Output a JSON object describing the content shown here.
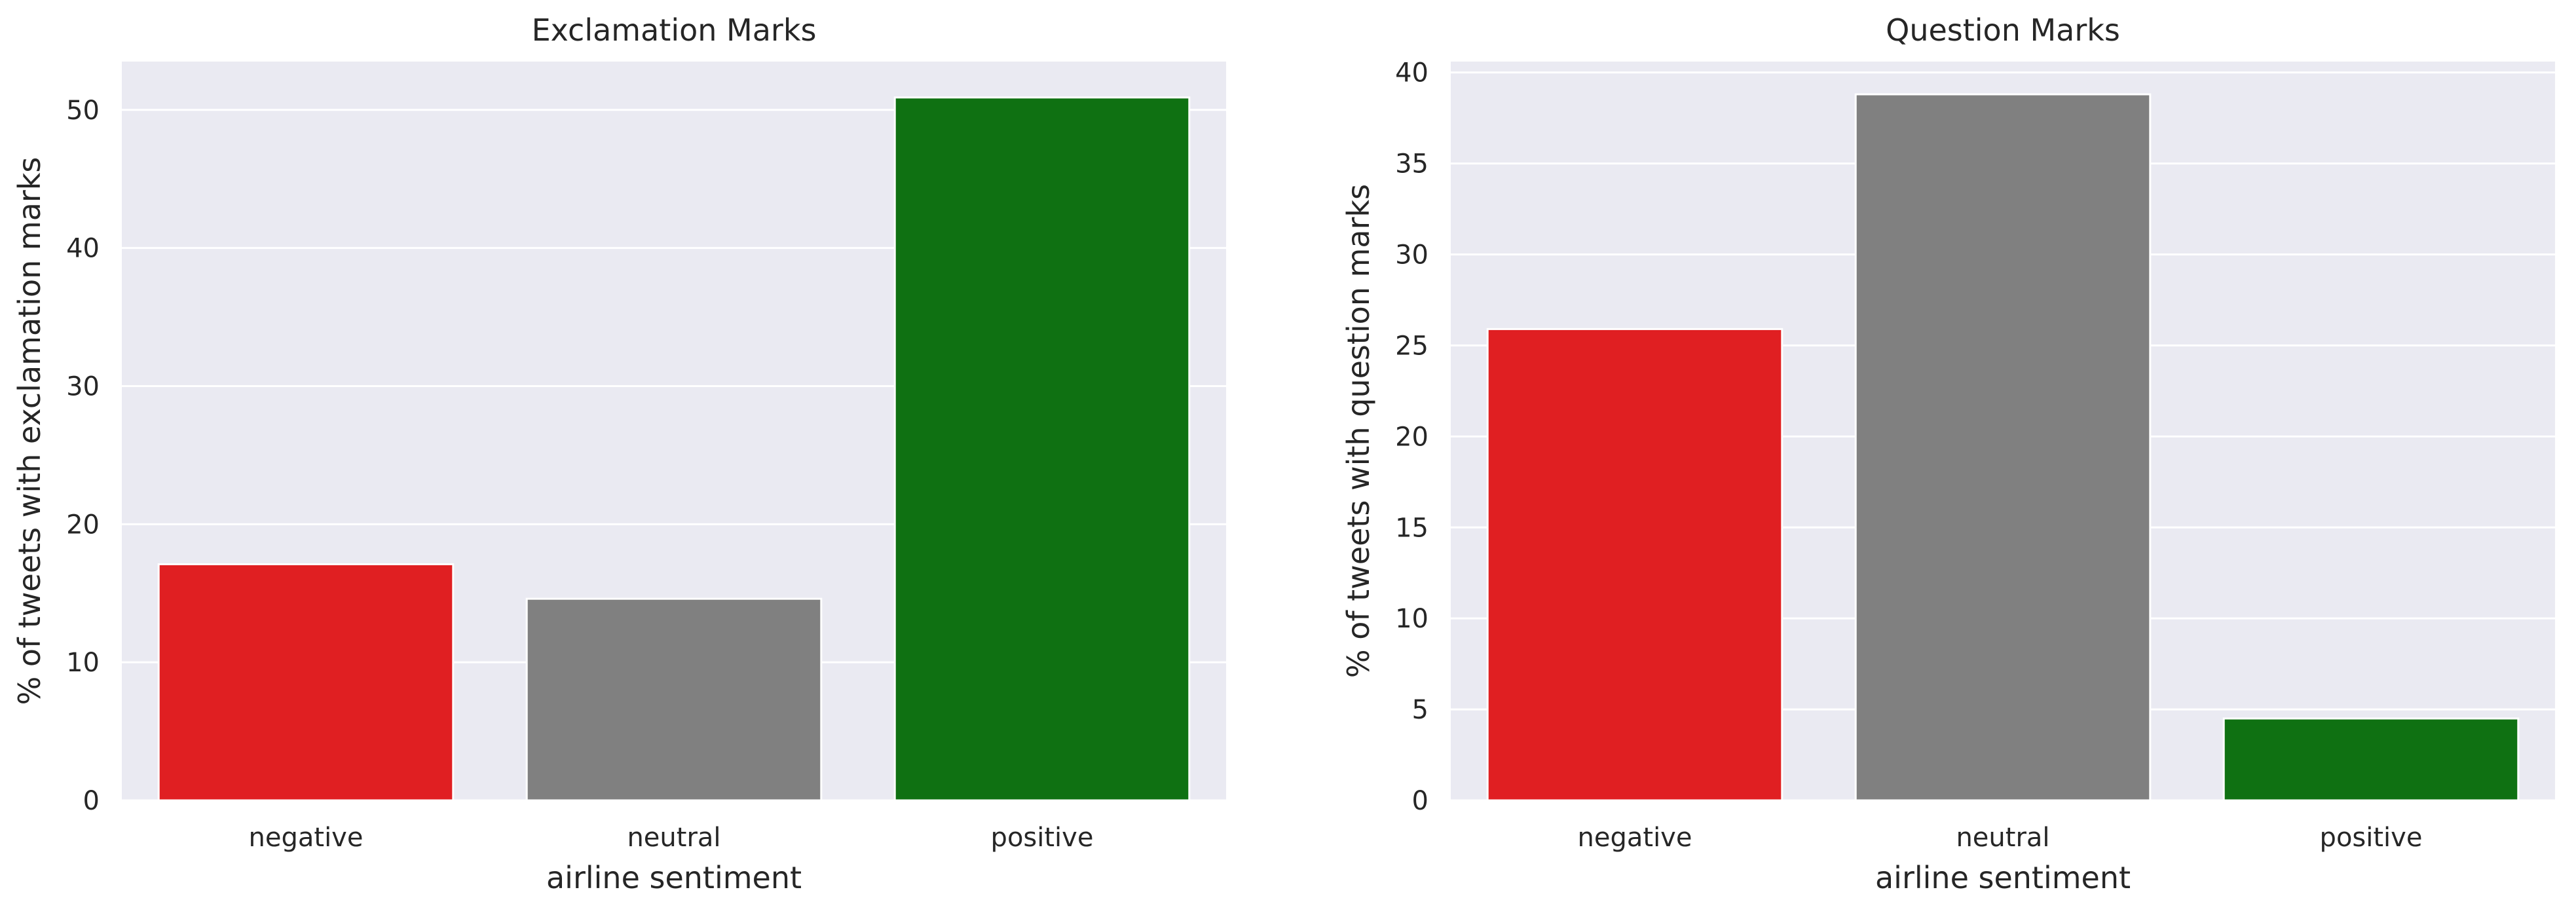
{
  "chart_data": [
    {
      "type": "bar",
      "title": "Exclamation Marks",
      "xlabel": "airline sentiment",
      "ylabel": "% of tweets with exclamation marks",
      "categories": [
        "negative",
        "neutral",
        "positive"
      ],
      "values": [
        17.1,
        14.6,
        50.9
      ],
      "colors": [
        "#e01f22",
        "#808080",
        "#0f7112"
      ],
      "ylim": [
        0,
        53.5
      ],
      "yticks": [
        0,
        10,
        20,
        30,
        40,
        50
      ],
      "grid": true
    },
    {
      "type": "bar",
      "title": "Question Marks",
      "xlabel": "airline sentiment",
      "ylabel": "% of tweets with question marks",
      "categories": [
        "negative",
        "neutral",
        "positive"
      ],
      "values": [
        25.9,
        38.8,
        4.5
      ],
      "colors": [
        "#e01f22",
        "#808080",
        "#0f7112"
      ],
      "ylim": [
        0,
        40.6
      ],
      "yticks": [
        0,
        5,
        10,
        15,
        20,
        25,
        30,
        35,
        40
      ],
      "grid": true
    }
  ],
  "style": {
    "plot_background": "#eaeaf2",
    "grid_color": "#ffffff",
    "text_color": "#262626"
  }
}
